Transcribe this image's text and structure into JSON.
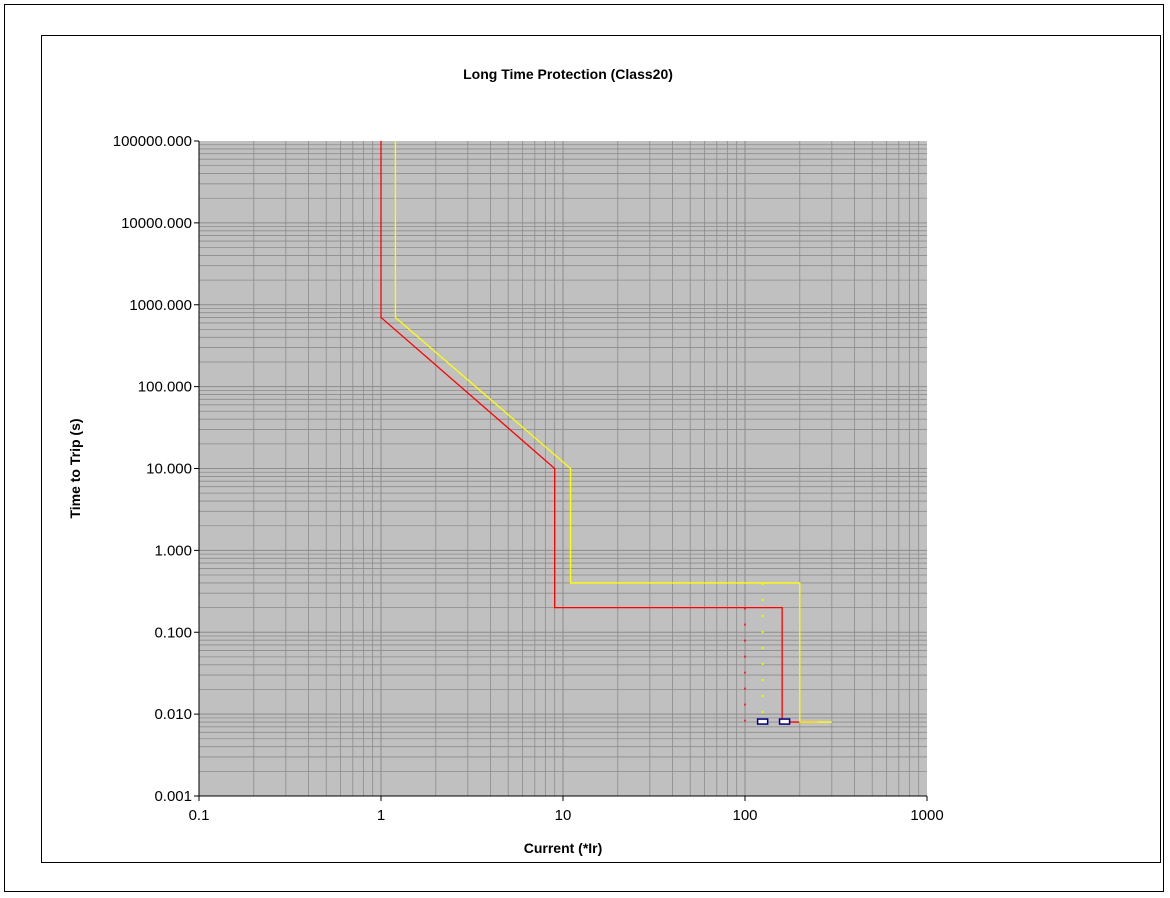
{
  "chart_data": {
    "type": "line",
    "title": "Long Time Protection (Class20)",
    "xlabel": "Current (*Ir)",
    "ylabel": "Time to Trip (s)",
    "x_scale": "log",
    "y_scale": "log",
    "xlim": [
      0.1,
      1000
    ],
    "ylim": [
      0.001,
      100000
    ],
    "x_ticks": [
      "0.1",
      "1",
      "10",
      "100",
      "1000"
    ],
    "x_tick_values": [
      0.1,
      1,
      10,
      100,
      1000
    ],
    "y_ticks": [
      "0.001",
      "0.010",
      "0.100",
      "1.000",
      "10.000",
      "100.000",
      "1000.000",
      "10000.000",
      "100000.000"
    ],
    "y_tick_values": [
      0.001,
      0.01,
      0.1,
      1,
      10,
      100,
      1000,
      10000,
      100000
    ],
    "grid": true,
    "legend": "none",
    "colors": {
      "plot_background": "#c0c0c0",
      "grid": "#8c8c8c",
      "red_curve": "#ff0000",
      "yellow_curve": "#ffff00",
      "marker_blue": "#000080"
    },
    "series": [
      {
        "color": "#ff0000",
        "style": "solid",
        "points": [
          [
            1,
            100000
          ],
          [
            1,
            700
          ],
          [
            9,
            10
          ],
          [
            9,
            0.2
          ],
          [
            160,
            0.2
          ],
          [
            160,
            0.008
          ],
          [
            250,
            0.008
          ]
        ]
      },
      {
        "color": "#ffff00",
        "style": "solid",
        "points": [
          [
            1.2,
            100000
          ],
          [
            1.2,
            700
          ],
          [
            11,
            10
          ],
          [
            11,
            0.4
          ],
          [
            200,
            0.4
          ],
          [
            200,
            0.008
          ],
          [
            300,
            0.008
          ]
        ]
      },
      {
        "color": "#ff0000",
        "style": "dotted",
        "points": [
          [
            100,
            0.2
          ],
          [
            100,
            0.008
          ]
        ]
      },
      {
        "color": "#ffff00",
        "style": "dotted",
        "points": [
          [
            125,
            0.4
          ],
          [
            125,
            0.008
          ]
        ]
      }
    ],
    "markers": [
      {
        "x": 125,
        "y": 0.008,
        "color": "#000080"
      },
      {
        "x": 165,
        "y": 0.008,
        "color": "#000080"
      }
    ]
  }
}
